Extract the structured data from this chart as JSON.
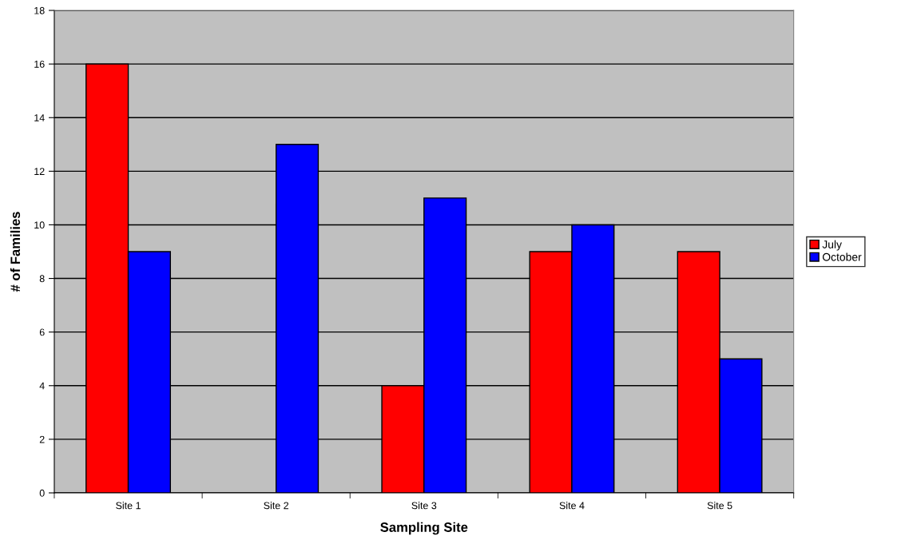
{
  "chart_data": {
    "type": "bar",
    "xlabel": "Sampling Site",
    "ylabel": "# of Families",
    "categories": [
      "Site 1",
      "Site 2",
      "Site 3",
      "Site 4",
      "Site 5"
    ],
    "series": [
      {
        "name": "July",
        "color": "#ff0000",
        "values": [
          16,
          0,
          4,
          9,
          9
        ]
      },
      {
        "name": "October",
        "color": "#0000ff",
        "values": [
          9,
          13,
          11,
          10,
          5
        ]
      }
    ],
    "ylim": [
      0,
      18
    ],
    "yticks": [
      0,
      2,
      4,
      6,
      8,
      10,
      12,
      14,
      16,
      18
    ],
    "grid": "y",
    "legend": "right"
  }
}
